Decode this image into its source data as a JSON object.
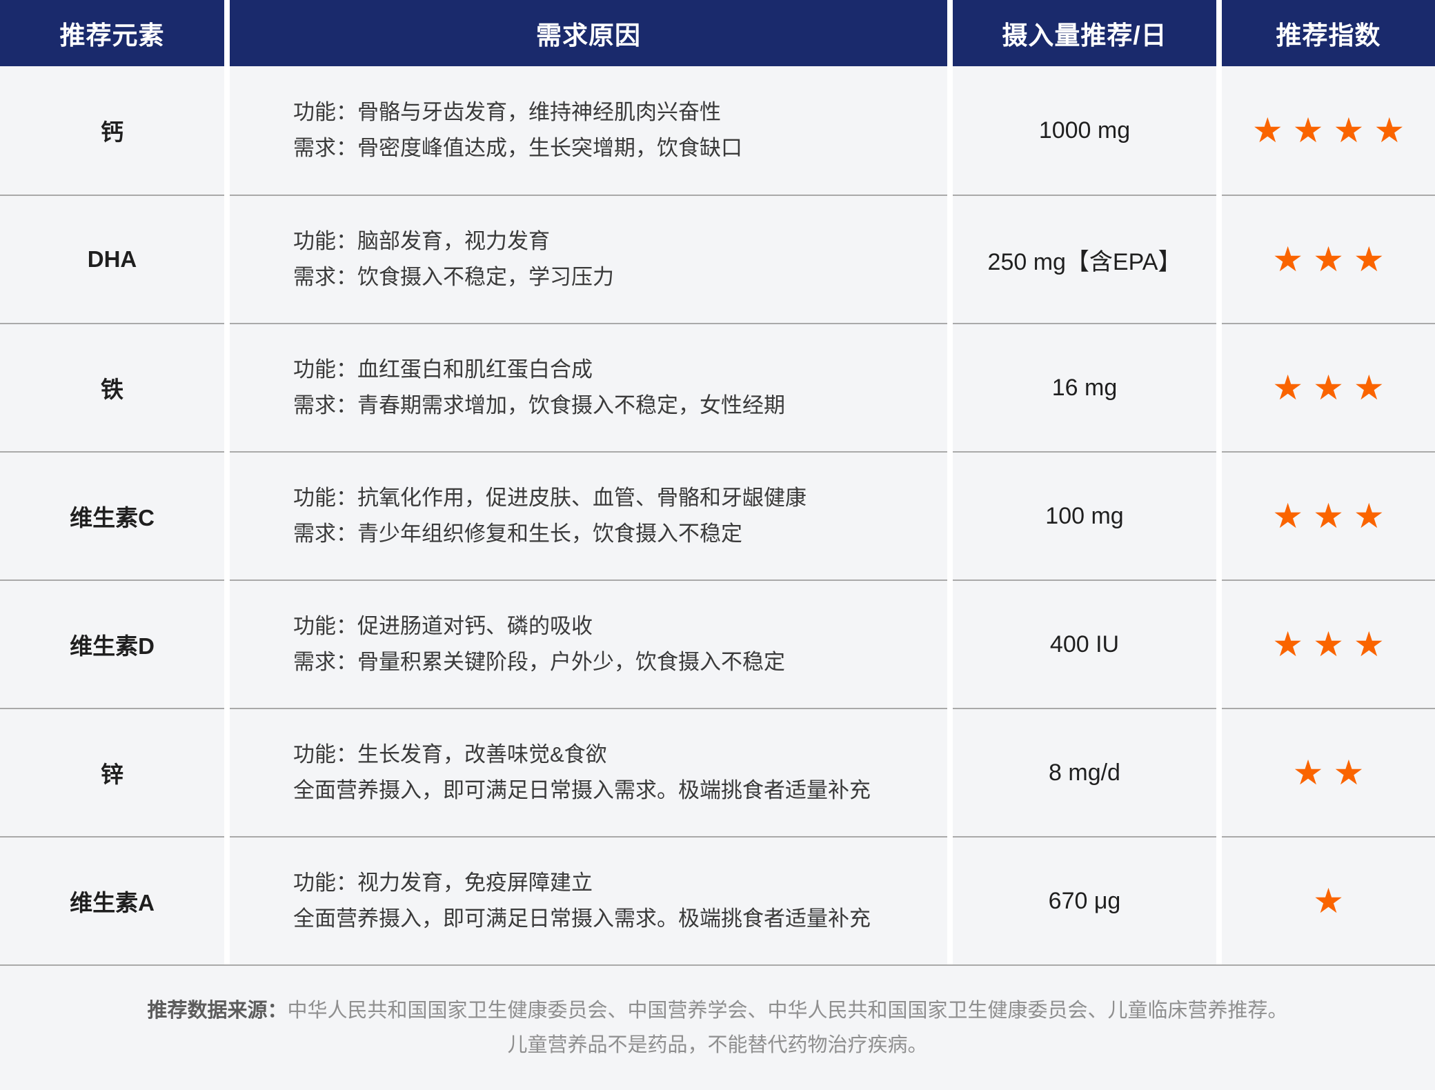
{
  "colors": {
    "header_bg": "#1a2a6c",
    "star": "#fa6400",
    "cell_bg": "#f4f5f7",
    "divider": "#a9a9a9"
  },
  "chart_data": {
    "type": "table",
    "title": "",
    "columns": [
      "推荐元素",
      "需求原因",
      "摄入量推荐/日",
      "推荐指数"
    ],
    "stars_max": 4,
    "rows": [
      {
        "element": "钙",
        "reason_line1": "功能：骨骼与牙齿发育，维持神经肌肉兴奋性",
        "reason_line2": "需求：骨密度峰值达成，生长突增期，饮食缺口",
        "intake": "1000 mg",
        "stars": 4
      },
      {
        "element": "DHA",
        "reason_line1": "功能：脑部发育，视力发育",
        "reason_line2": "需求：饮食摄入不稳定，学习压力",
        "intake": "250 mg【含EPA】",
        "stars": 3
      },
      {
        "element": "铁",
        "reason_line1": "功能：血红蛋白和肌红蛋白合成",
        "reason_line2": "需求：青春期需求增加，饮食摄入不稳定，女性经期",
        "intake": "16 mg",
        "stars": 3
      },
      {
        "element": "维生素C",
        "reason_line1": "功能：抗氧化作用，促进皮肤、血管、骨骼和牙龈健康",
        "reason_line2": "需求：青少年组织修复和生长，饮食摄入不稳定",
        "intake": "100 mg",
        "stars": 3
      },
      {
        "element": "维生素D",
        "reason_line1": "功能：促进肠道对钙、磷的吸收",
        "reason_line2": "需求：骨量积累关键阶段，户外少，饮食摄入不稳定",
        "intake": "400 IU",
        "stars": 3
      },
      {
        "element": "锌",
        "reason_line1": "功能：生长发育，改善味觉&食欲",
        "reason_line2": "全面营养摄入，即可满足日常摄入需求。极端挑食者适量补充",
        "intake": "8 mg/d",
        "stars": 2
      },
      {
        "element": "维生素A",
        "reason_line1": "功能：视力发育，免疫屏障建立",
        "reason_line2": "全面营养摄入，即可满足日常摄入需求。极端挑食者适量补充",
        "intake": "670 μg",
        "stars": 1
      }
    ]
  },
  "footer": {
    "source_label": "推荐数据来源：",
    "source_text": "中华人民共和国国家卫生健康委员会、中国营养学会、中华人民共和国国家卫生健康委员会、儿童临床营养推荐。",
    "disclaimer": "儿童营养品不是药品，不能替代药物治疗疾病。"
  }
}
